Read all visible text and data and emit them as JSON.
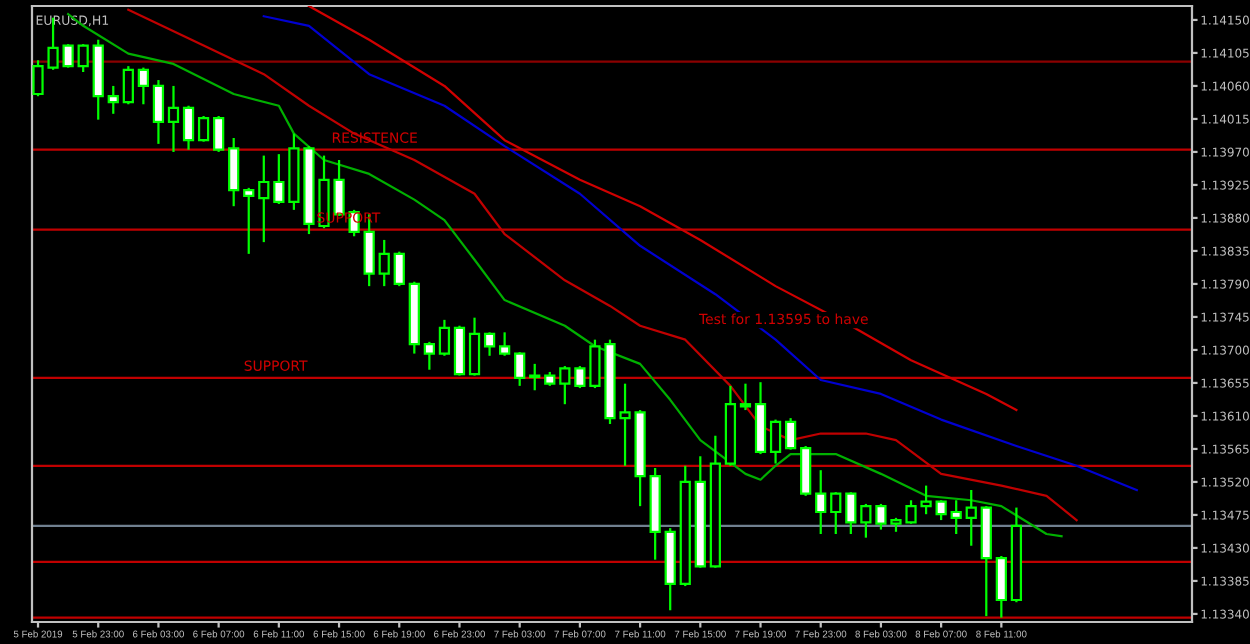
{
  "chart_data": {
    "type": "candlestick",
    "title": "EURUSD,H1",
    "color": "#00ff00",
    "x": [
      "2019-02-05T19:00",
      "2019-02-05T20:00",
      "2019-02-05T21:00",
      "2019-02-05T22:00",
      "2019-02-05T23:00",
      "2019-02-06T00:00",
      "2019-02-06T01:00",
      "2019-02-06T02:00",
      "2019-02-06T03:00",
      "2019-02-06T04:00",
      "2019-02-06T05:00",
      "2019-02-06T06:00",
      "2019-02-06T07:00",
      "2019-02-06T08:00",
      "2019-02-06T09:00",
      "2019-02-06T10:00",
      "2019-02-06T11:00",
      "2019-02-06T12:00",
      "2019-02-06T13:00",
      "2019-02-06T14:00",
      "2019-02-06T15:00",
      "2019-02-06T16:00",
      "2019-02-06T17:00",
      "2019-02-06T18:00",
      "2019-02-06T19:00",
      "2019-02-06T20:00",
      "2019-02-06T21:00",
      "2019-02-06T22:00",
      "2019-02-06T23:00",
      "2019-02-07T00:00",
      "2019-02-07T01:00",
      "2019-02-07T02:00",
      "2019-02-07T03:00",
      "2019-02-07T04:00",
      "2019-02-07T05:00",
      "2019-02-07T06:00",
      "2019-02-07T07:00",
      "2019-02-07T08:00",
      "2019-02-07T09:00",
      "2019-02-07T10:00",
      "2019-02-07T11:00",
      "2019-02-07T12:00",
      "2019-02-07T13:00",
      "2019-02-07T14:00",
      "2019-02-07T15:00",
      "2019-02-07T16:00",
      "2019-02-07T17:00",
      "2019-02-07T18:00",
      "2019-02-07T19:00",
      "2019-02-07T20:00",
      "2019-02-07T21:00",
      "2019-02-07T22:00",
      "2019-02-07T23:00",
      "2019-02-08T00:00",
      "2019-02-08T01:00",
      "2019-02-08T02:00",
      "2019-02-08T03:00",
      "2019-02-08T04:00",
      "2019-02-08T05:00",
      "2019-02-08T06:00",
      "2019-02-08T07:00",
      "2019-02-08T08:00",
      "2019-02-08T09:00",
      "2019-02-08T10:00",
      "2019-02-08T11:00",
      "2019-02-08T12:00"
    ],
    "ohlc": [
      [
        1.14049,
        1.14095,
        1.14046,
        1.14087
      ],
      [
        1.14085,
        1.14153,
        1.14082,
        1.14112
      ],
      [
        1.14115,
        1.14117,
        1.14085,
        1.14087
      ],
      [
        1.14087,
        1.14117,
        1.14079,
        1.14115
      ],
      [
        1.14115,
        1.14123,
        1.14014,
        1.14046
      ],
      [
        1.14046,
        1.1406,
        1.14022,
        1.14038
      ],
      [
        1.14038,
        1.14087,
        1.14035,
        1.14082
      ],
      [
        1.14082,
        1.14085,
        1.14035,
        1.1406
      ],
      [
        1.1406,
        1.14068,
        1.13981,
        1.14011
      ],
      [
        1.14011,
        1.1406,
        1.1397,
        1.1403
      ],
      [
        1.1403,
        1.14033,
        1.13973,
        1.13986
      ],
      [
        1.13986,
        1.14019,
        1.13984,
        1.14016
      ],
      [
        1.14016,
        1.14019,
        1.1397,
        1.13973
      ],
      [
        1.13975,
        1.13989,
        1.13896,
        1.13918
      ],
      [
        1.13918,
        1.13921,
        1.13831,
        1.1391
      ],
      [
        1.13907,
        1.13965,
        1.13847,
        1.13929
      ],
      [
        1.13929,
        1.13967,
        1.13899,
        1.13902
      ],
      [
        1.13902,
        1.13995,
        1.13891,
        1.13975
      ],
      [
        1.13975,
        1.13978,
        1.13858,
        1.13872
      ],
      [
        1.13869,
        1.13965,
        1.13866,
        1.13932
      ],
      [
        1.13932,
        1.13959,
        1.13883,
        1.13885
      ],
      [
        1.13888,
        1.13891,
        1.13855,
        1.13861
      ],
      [
        1.13861,
        1.13885,
        1.13787,
        1.13804
      ],
      [
        1.13804,
        1.1385,
        1.13787,
        1.13831
      ],
      [
        1.13831,
        1.13834,
        1.13787,
        1.1379
      ],
      [
        1.1379,
        1.13793,
        1.13695,
        1.13708
      ],
      [
        1.13708,
        1.13711,
        1.13673,
        1.13695
      ],
      [
        1.13695,
        1.13741,
        1.13692,
        1.1373
      ],
      [
        1.1373,
        1.13733,
        1.13665,
        1.13667
      ],
      [
        1.13667,
        1.13744,
        1.13665,
        1.13722
      ],
      [
        1.13722,
        1.13724,
        1.13692,
        1.13705
      ],
      [
        1.13705,
        1.13724,
        1.13692,
        1.13695
      ],
      [
        1.13695,
        1.13697,
        1.13651,
        1.13662
      ],
      [
        1.13665,
        1.13681,
        1.13645,
        1.13663
      ],
      [
        1.13665,
        1.1367,
        1.13651,
        1.13654
      ],
      [
        1.13654,
        1.13678,
        1.13626,
        1.13675
      ],
      [
        1.13675,
        1.13678,
        1.13648,
        1.13651
      ],
      [
        1.13651,
        1.13714,
        1.13648,
        1.13705
      ],
      [
        1.13708,
        1.13714,
        1.13599,
        1.13607
      ],
      [
        1.13607,
        1.13654,
        1.13542,
        1.13615
      ],
      [
        1.13615,
        1.13618,
        1.13487,
        1.13528
      ],
      [
        1.13528,
        1.13539,
        1.13414,
        1.13452
      ],
      [
        1.13452,
        1.13457,
        1.13345,
        1.13381
      ],
      [
        1.13381,
        1.13542,
        1.13378,
        1.1352
      ],
      [
        1.1352,
        1.13555,
        1.13403,
        1.13405
      ],
      [
        1.13405,
        1.13583,
        1.13403,
        1.13545
      ],
      [
        1.13545,
        1.13651,
        1.13542,
        1.13626
      ],
      [
        1.13626,
        1.13654,
        1.13618,
        1.13623
      ],
      [
        1.13626,
        1.13656,
        1.13558,
        1.13561
      ],
      [
        1.13561,
        1.13605,
        1.13545,
        1.13602
      ],
      [
        1.13602,
        1.13607,
        1.13564,
        1.13566
      ],
      [
        1.13566,
        1.13569,
        1.13501,
        1.13504
      ],
      [
        1.13504,
        1.13536,
        1.13449,
        1.13479
      ],
      [
        1.13479,
        1.13506,
        1.13449,
        1.13504
      ],
      [
        1.13504,
        1.13506,
        1.13449,
        1.13465
      ],
      [
        1.13465,
        1.1349,
        1.13444,
        1.13487
      ],
      [
        1.13487,
        1.1349,
        1.13455,
        1.13463
      ],
      [
        1.13463,
        1.13471,
        1.13452,
        1.13468
      ],
      [
        1.13465,
        1.13495,
        1.13463,
        1.13487
      ],
      [
        1.13487,
        1.13515,
        1.13476,
        1.13493
      ],
      [
        1.13493,
        1.13495,
        1.13468,
        1.13476
      ],
      [
        1.13479,
        1.13495,
        1.13449,
        1.13471
      ],
      [
        1.13471,
        1.13509,
        1.13433,
        1.13485
      ],
      [
        1.13485,
        1.13487,
        1.13337,
        1.13416
      ],
      [
        1.13416,
        1.13419,
        1.13335,
        1.13359
      ],
      [
        1.13359,
        1.13485,
        1.13356,
        1.1346
      ]
    ],
    "series": [
      {
        "type": "line",
        "color": "#00b000",
        "x": [
          "2019-02-05T21:00",
          "2019-02-05T22:00",
          "2019-02-06T01:00",
          "2019-02-06T04:00",
          "2019-02-06T08:00",
          "2019-02-06T11:00",
          "2019-02-06T12:00",
          "2019-02-06T14:00",
          "2019-02-06T17:00",
          "2019-02-06T20:00",
          "2019-02-06T22:00",
          "2019-02-07T00:00",
          "2019-02-07T02:00",
          "2019-02-07T06:00",
          "2019-02-07T08:00",
          "2019-02-07T11:00",
          "2019-02-07T13:00",
          "2019-02-07T15:00",
          "2019-02-07T18:00",
          "2019-02-07T19:00",
          "2019-02-07T20:00",
          "2019-02-07T21:00",
          "2019-02-08T00:00",
          "2019-02-08T03:00",
          "2019-02-08T06:00",
          "2019-02-08T09:00",
          "2019-02-08T11:00",
          "2019-02-08T14:00",
          "2019-02-08T15:00"
        ],
        "values": [
          1.14158,
          1.14142,
          1.14104,
          1.1409,
          1.14049,
          1.14033,
          1.13995,
          1.13959,
          1.1394,
          1.13905,
          1.13877,
          1.13823,
          1.13768,
          1.13733,
          1.13705,
          1.13681,
          1.13632,
          1.13577,
          1.13531,
          1.13523,
          1.13542,
          1.13558,
          1.13558,
          1.13531,
          1.13501,
          1.13495,
          1.13487,
          1.13449,
          1.13446
        ]
      },
      {
        "type": "line",
        "color": "#c00000",
        "x": [
          "2019-02-06T01:00",
          "2019-02-06T06:00",
          "2019-02-06T10:00",
          "2019-02-06T13:00",
          "2019-02-06T16:00",
          "2019-02-06T20:00",
          "2019-02-07T00:00",
          "2019-02-07T02:00",
          "2019-02-07T06:00",
          "2019-02-07T09:00",
          "2019-02-07T11:00",
          "2019-02-07T14:00",
          "2019-02-07T17:00",
          "2019-02-07T19:00",
          "2019-02-07T21:00",
          "2019-02-07T23:00",
          "2019-02-08T02:00",
          "2019-02-08T04:00",
          "2019-02-08T07:00",
          "2019-02-08T11:00",
          "2019-02-08T14:00",
          "2019-02-08T16:00"
        ],
        "values": [
          1.14164,
          1.14115,
          1.14076,
          1.14033,
          1.13995,
          1.13959,
          1.13913,
          1.13858,
          1.13795,
          1.1376,
          1.13733,
          1.13714,
          1.13651,
          1.13596,
          1.13577,
          1.13586,
          1.13586,
          1.13577,
          1.13531,
          1.13515,
          1.13501,
          1.13468
        ]
      },
      {
        "type": "line",
        "color": "#0000d0",
        "x": [
          "2019-02-06T10:00",
          "2019-02-06T13:00",
          "2019-02-06T17:00",
          "2019-02-06T22:00",
          "2019-02-07T02:00",
          "2019-02-07T07:00",
          "2019-02-07T11:00",
          "2019-02-07T16:00",
          "2019-02-07T20:00",
          "2019-02-07T23:00",
          "2019-02-08T03:00",
          "2019-02-08T07:00",
          "2019-02-08T12:00",
          "2019-02-08T16:00",
          "2019-02-08T20:00"
        ],
        "values": [
          1.14155,
          1.14142,
          1.14076,
          1.14033,
          1.13978,
          1.13913,
          1.13842,
          1.13776,
          1.13714,
          1.13659,
          1.1364,
          1.13605,
          1.13569,
          1.13542,
          1.13509
        ]
      },
      {
        "type": "line",
        "color": "#d00000",
        "x": [
          "2019-02-06T13:00",
          "2019-02-06T17:00",
          "2019-02-06T22:00",
          "2019-02-07T02:00",
          "2019-02-07T07:00",
          "2019-02-07T11:00",
          "2019-02-07T15:00",
          "2019-02-07T20:00",
          "2019-02-08T01:00",
          "2019-02-08T05:00",
          "2019-02-08T10:00",
          "2019-02-08T12:00"
        ],
        "values": [
          1.14169,
          1.14123,
          1.1406,
          1.13986,
          1.13932,
          1.13896,
          1.1385,
          1.13787,
          1.13733,
          1.13686,
          1.1364,
          1.13618
        ]
      }
    ],
    "ref_lines": [
      {
        "axis": "y",
        "value": 1.14093,
        "color": "#8b0000"
      },
      {
        "axis": "y",
        "value": 1.13973,
        "color": "#c00000"
      },
      {
        "axis": "y",
        "value": 1.13864,
        "color": "#c00000"
      },
      {
        "axis": "y",
        "value": 1.13662,
        "color": "#c00000"
      },
      {
        "axis": "y",
        "value": 1.13542,
        "color": "#c00000"
      },
      {
        "axis": "y",
        "value": 1.1346,
        "color": "#708090"
      },
      {
        "axis": "y",
        "value": 1.13411,
        "color": "#c00000"
      },
      {
        "axis": "y",
        "value": 1.13335,
        "color": "#c00000"
      }
    ],
    "annotations": [
      {
        "text": "RESISTENCE",
        "x": "2019-02-06T14:30",
        "y": 1.13973
      },
      {
        "text": "SUPPORT",
        "x": "2019-02-06T13:30",
        "y": 1.13864
      },
      {
        "text": "SUPPORT",
        "x": "2019-02-06T08:40",
        "y": 1.13662
      },
      "Test for 1.13595 to have"
    ],
    "xlim": [
      "2019-02-05T18:36",
      "2019-02-08T23:40"
    ],
    "ylim": [
      1.13329,
      1.14169
    ],
    "xticks": [
      {
        "value": "2019-02-05T19:00",
        "label": "5 Feb 2019"
      },
      {
        "value": "2019-02-05T23:00",
        "label": "5 Feb 23:00"
      },
      {
        "value": "2019-02-06T03:00",
        "label": "6 Feb 03:00"
      },
      {
        "value": "2019-02-06T07:00",
        "label": "6 Feb 07:00"
      },
      {
        "value": "2019-02-06T11:00",
        "label": "6 Feb 11:00"
      },
      {
        "value": "2019-02-06T15:00",
        "label": "6 Feb 15:00"
      },
      {
        "value": "2019-02-06T19:00",
        "label": "6 Feb 19:00"
      },
      {
        "value": "2019-02-06T23:00",
        "label": "6 Feb 23:00"
      },
      {
        "value": "2019-02-07T03:00",
        "label": "7 Feb 03:00"
      },
      {
        "value": "2019-02-07T07:00",
        "label": "7 Feb 07:00"
      },
      {
        "value": "2019-02-07T11:00",
        "label": "7 Feb 11:00"
      },
      {
        "value": "2019-02-07T15:00",
        "label": "7 Feb 15:00"
      },
      {
        "value": "2019-02-07T19:00",
        "label": "7 Feb 19:00"
      },
      {
        "value": "2019-02-07T23:00",
        "label": "7 Feb 23:00"
      },
      {
        "value": "2019-02-08T03:00",
        "label": "8 Feb 03:00"
      },
      {
        "value": "2019-02-08T07:00",
        "label": "8 Feb 07:00"
      },
      {
        "value": "2019-02-08T11:00",
        "label": "8 Feb 11:00"
      }
    ],
    "yticks": [
      {
        "value": 1.1415,
        "label": "1.14150"
      },
      {
        "value": 1.14105,
        "label": "1.14105"
      },
      {
        "value": 1.1406,
        "label": "1.14060"
      },
      {
        "value": 1.14015,
        "label": "1.14015"
      },
      {
        "value": 1.1397,
        "label": "1.13970"
      },
      {
        "value": 1.13925,
        "label": "1.13925"
      },
      {
        "value": 1.1388,
        "label": "1.13880"
      },
      {
        "value": 1.13835,
        "label": "1.13835"
      },
      {
        "value": 1.1379,
        "label": "1.13790"
      },
      {
        "value": 1.13745,
        "label": "1.13745"
      },
      {
        "value": 1.137,
        "label": "1.13700"
      },
      {
        "value": 1.13655,
        "label": "1.13655"
      },
      {
        "value": 1.1361,
        "label": "1.13610"
      },
      {
        "value": 1.13565,
        "label": "1.13565"
      },
      {
        "value": 1.1352,
        "label": "1.13520"
      },
      {
        "value": 1.13475,
        "label": "1.13475"
      },
      {
        "value": 1.1343,
        "label": "1.13430"
      },
      {
        "value": 1.13385,
        "label": "1.13385"
      },
      {
        "value": 1.1334,
        "label": "1.13340"
      }
    ],
    "grid": false,
    "legend": false
  }
}
